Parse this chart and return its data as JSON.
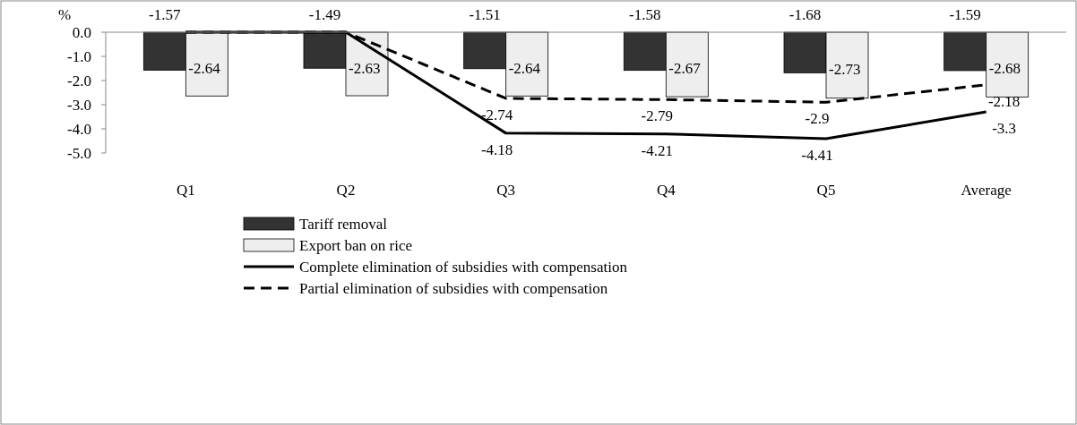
{
  "chart_data": {
    "type": "bar",
    "ylabel": "%",
    "categories": [
      "Q1",
      "Q2",
      "Q3",
      "Q4",
      "Q5",
      "Average"
    ],
    "ylim": [
      -5,
      0
    ],
    "yticks": [
      {
        "value": 0,
        "label": "0.0"
      },
      {
        "value": -1,
        "label": "-1.0"
      },
      {
        "value": -2,
        "label": "-2.0"
      },
      {
        "value": -3,
        "label": "-3.0"
      },
      {
        "value": -4,
        "label": "-4.0"
      },
      {
        "value": -5,
        "label": "-5.0"
      }
    ],
    "grid": false,
    "legend": "bottom",
    "data_labels": true,
    "series": [
      {
        "name": "Tariff removal",
        "type": "bar",
        "color": "#333333",
        "values": [
          -1.57,
          -1.49,
          -1.51,
          -1.58,
          -1.68,
          -1.59
        ]
      },
      {
        "name": "Export ban on rice",
        "type": "bar",
        "color": "#eeeeee",
        "values": [
          -2.64,
          -2.63,
          -2.64,
          -2.67,
          -2.73,
          -2.68
        ]
      },
      {
        "name": "Complete elimination of subsidies with compensation",
        "type": "line",
        "color": "#000000",
        "line_style": "solid",
        "marker": "none",
        "values": [
          0,
          0,
          -4.18,
          -4.21,
          -4.41,
          -3.3
        ],
        "value_labels": [
          null,
          null,
          "-4.18",
          "-4.21",
          "-4.41",
          "-3.3"
        ]
      },
      {
        "name": "Partial elimination of subsidies with compensation",
        "type": "line",
        "color": "#000000",
        "line_style": "dashed",
        "marker": "none",
        "values": [
          0,
          0,
          -2.74,
          -2.79,
          -2.9,
          -2.18
        ],
        "value_labels": [
          null,
          null,
          "-2.74",
          "-2.79",
          "-2.9",
          "-2.18"
        ]
      }
    ]
  }
}
